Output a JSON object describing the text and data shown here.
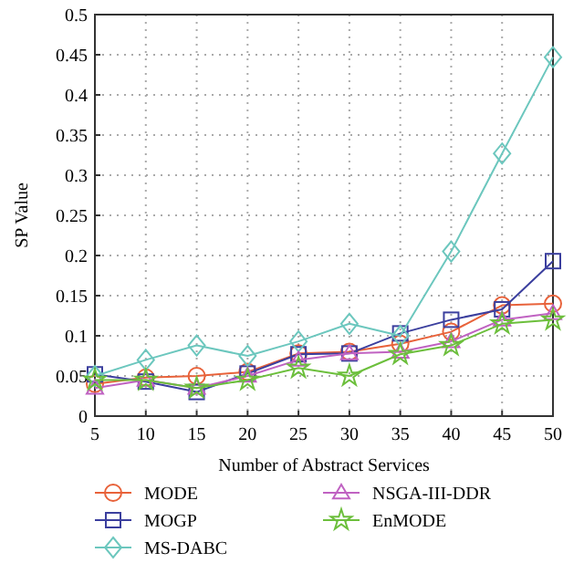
{
  "chart_data": {
    "type": "line",
    "xlabel": "Number of Abstract Services",
    "ylabel": "SP Value",
    "x": [
      5,
      10,
      15,
      20,
      25,
      30,
      35,
      40,
      45,
      50
    ],
    "xlim": [
      5,
      50
    ],
    "xticks": [
      5,
      10,
      15,
      20,
      25,
      30,
      35,
      40,
      45,
      50
    ],
    "ylim": [
      0,
      0.5
    ],
    "yticks": [
      0,
      0.05,
      0.1,
      0.15,
      0.2,
      0.25,
      0.3,
      0.35,
      0.4,
      0.45,
      0.5
    ],
    "grid": true,
    "legend": "bottom",
    "series": [
      {
        "name": "MODE",
        "color": "#e8623a",
        "marker": "circle",
        "values": [
          0.04,
          0.048,
          0.05,
          0.055,
          0.078,
          0.08,
          0.09,
          0.105,
          0.138,
          0.14
        ]
      },
      {
        "name": "MOGP",
        "color": "#3b3f9e",
        "marker": "square",
        "values": [
          0.052,
          0.043,
          0.03,
          0.053,
          0.077,
          0.078,
          0.103,
          0.12,
          0.133,
          0.193
        ]
      },
      {
        "name": "MS-DABC",
        "color": "#6cc7be",
        "marker": "diamond",
        "values": [
          0.05,
          0.07,
          0.088,
          0.075,
          0.093,
          0.115,
          0.1,
          0.205,
          0.327,
          0.447
        ]
      },
      {
        "name": "NSGA-III-DDR",
        "color": "#c062c2",
        "marker": "triangle",
        "values": [
          0.035,
          0.045,
          0.035,
          0.05,
          0.07,
          0.078,
          0.08,
          0.093,
          0.12,
          0.128
        ]
      },
      {
        "name": "EnMODE",
        "color": "#6cbf3c",
        "marker": "star",
        "values": [
          0.045,
          0.045,
          0.035,
          0.045,
          0.06,
          0.05,
          0.077,
          0.088,
          0.115,
          0.12
        ]
      }
    ]
  }
}
